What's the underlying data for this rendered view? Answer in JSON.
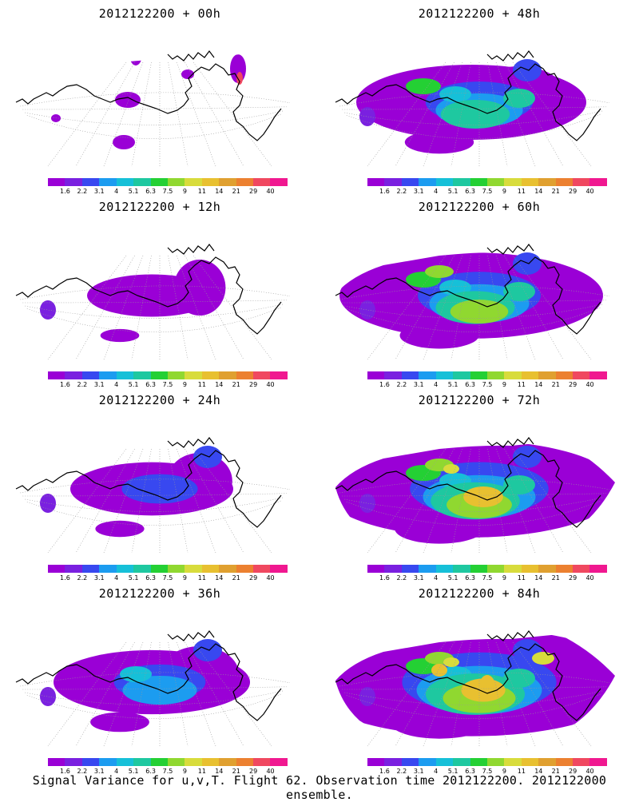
{
  "caption": "Signal Variance for u,v,T. Flight 62. Observation time 2012122200. 2012122000 ensemble.",
  "colorbar": {
    "colors": [
      "#9a00d6",
      "#7a20e0",
      "#3848f0",
      "#1c9cf0",
      "#16c0d8",
      "#1ec8a0",
      "#24d034",
      "#90d830",
      "#d8dc3c",
      "#e8c030",
      "#e0a030",
      "#ec8030",
      "#f04860",
      "#f01890"
    ],
    "ticks": [
      "1.6",
      "2.2",
      "3.1",
      "4",
      "5.1",
      "6.3",
      "7.5",
      "9",
      "11",
      "14",
      "21",
      "29",
      "40"
    ]
  },
  "panels": [
    {
      "title": "2012122200 + 00h",
      "level": 0
    },
    {
      "title": "2012122200 + 48h",
      "level": 4
    },
    {
      "title": "2012122200 + 12h",
      "level": 1
    },
    {
      "title": "2012122200 + 60h",
      "level": 5
    },
    {
      "title": "2012122200 + 24h",
      "level": 2
    },
    {
      "title": "2012122200 + 72h",
      "level": 6
    },
    {
      "title": "2012122200 + 36h",
      "level": 3
    },
    {
      "title": "2012122200 + 84h",
      "level": 7
    }
  ]
}
